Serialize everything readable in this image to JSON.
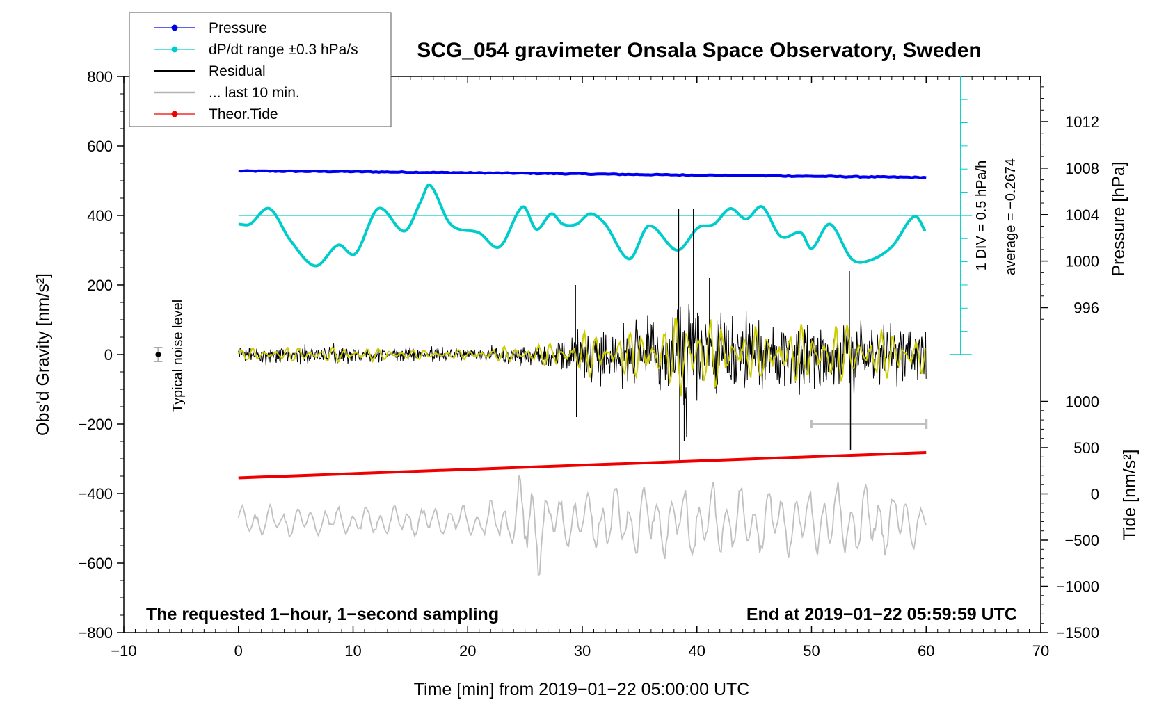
{
  "chart_data": {
    "type": "line",
    "title": "SCG_054 gravimeter Onsala Space Observatory, Sweden",
    "xlabel": "Time [min] from 2019−01−22 05:00:00 UTC",
    "ylabel_left": "Obs'd Gravity [nm/s²]",
    "ylabel_right_pressure": "Pressure [hPa]",
    "ylabel_right_tide": "Tide [nm/s²]",
    "xlim": [
      -10,
      70
    ],
    "ylim": [
      -800,
      800
    ],
    "x_ticks": [
      "−10",
      "0",
      "10",
      "20",
      "30",
      "40",
      "50",
      "60",
      "70"
    ],
    "y_ticks": [
      "800",
      "600",
      "400",
      "200",
      "0",
      "−200",
      "−400",
      "−600",
      "−800"
    ],
    "pressure_ticks": [
      "1012",
      "1008",
      "1004",
      "1000",
      "996"
    ],
    "pressure_tick_values": [
      1012,
      1008,
      1004,
      1000,
      996
    ],
    "pressure_axis": {
      "value_a": 1012,
      "gravity_a": 670,
      "value_b": 996,
      "gravity_b": 135
    },
    "tide_ticks": [
      "1000",
      "500",
      "0",
      "−500",
      "−1000",
      "−1500"
    ],
    "tide_tick_values": [
      1000,
      500,
      0,
      -500,
      -1000,
      -1500
    ],
    "tide_axis": {
      "value_a": 1000,
      "gravity_a": -135,
      "value_b": -1500,
      "gravity_b": -800
    },
    "legend": [
      {
        "label": "Pressure",
        "color": "#0000ee",
        "style": "line-dot"
      },
      {
        "label": "dP/dt range ±0.3 hPa/s",
        "color": "#00cccc",
        "style": "line-dot"
      },
      {
        "label": "Residual",
        "color": "#000000",
        "style": "line"
      },
      {
        "label": "... last 10 min.",
        "color": "#b4b4b4",
        "style": "line"
      },
      {
        "label": "Theor.Tide",
        "color": "#ee0000",
        "style": "line-dot"
      }
    ],
    "annotations": {
      "sampling_note": "The requested 1−hour, 1−second sampling",
      "end_note": "End at 2019−01−22 05:59:59 UTC",
      "noise_label": "Typical noise level",
      "div_label": "1 DIV = 0.5 hPa/h",
      "average_label": "average = −0.2674"
    },
    "noise_marker": {
      "x": -7,
      "y": 0,
      "err": 20
    },
    "series": [
      {
        "name": "Pressure",
        "color": "#0000ee",
        "x": [
          0,
          10,
          20,
          30,
          40,
          50,
          60
        ],
        "y_hpa": [
          1007.75,
          1007.7,
          1007.6,
          1007.5,
          1007.4,
          1007.3,
          1007.2
        ]
      },
      {
        "name": "dP/dt",
        "color": "#00cccc",
        "reference_y": 400,
        "x": [
          0,
          1,
          2.7,
          4.5,
          6.7,
          8.7,
          10.2,
          12.2,
          14.5,
          15.9,
          16.7,
          18.5,
          21,
          22.8,
          24.8,
          26,
          27.3,
          28.3,
          29.5,
          30.7,
          32,
          34.1,
          35.8,
          38.3,
          40.1,
          41.5,
          42.9,
          44.3,
          45.7,
          47.3,
          49.1,
          50,
          51.6,
          53.5,
          55,
          57,
          59,
          60
        ],
        "y": [
          375,
          375,
          420,
          330,
          255,
          315,
          290,
          420,
          355,
          440,
          488,
          375,
          350,
          310,
          425,
          360,
          405,
          375,
          375,
          405,
          375,
          275,
          370,
          300,
          365,
          375,
          420,
          390,
          425,
          340,
          350,
          305,
          375,
          275,
          270,
          310,
          398,
          350
        ]
      },
      {
        "name": "Theor.Tide",
        "color": "#ee0000",
        "x": [
          0,
          60
        ],
        "y": [
          -355,
          -282
        ]
      }
    ],
    "residual_envelope": {
      "x": [
        0,
        5,
        10,
        15,
        20,
        24,
        29,
        30,
        32,
        35,
        38,
        38.5,
        40,
        42,
        45,
        48,
        50,
        53,
        55,
        58,
        60
      ],
      "amplitude": [
        30,
        35,
        38,
        25,
        25,
        40,
        70,
        120,
        110,
        130,
        150,
        280,
        250,
        140,
        140,
        130,
        150,
        160,
        130,
        110,
        100
      ]
    },
    "residual_spikes": [
      {
        "x": 29.4,
        "y": 200
      },
      {
        "x": 29.5,
        "y": -180
      },
      {
        "x": 38.4,
        "y": 420
      },
      {
        "x": 38.5,
        "y": -305
      },
      {
        "x": 38.9,
        "y": -250
      },
      {
        "x": 39.7,
        "y": 420
      },
      {
        "x": 41.1,
        "y": 220
      },
      {
        "x": 53.3,
        "y": 240
      },
      {
        "x": 53.4,
        "y": -275
      }
    ],
    "last10_bar": {
      "x_start": 50,
      "x_end": 60,
      "y": -200
    },
    "last10_trace": {
      "baseline": -480,
      "x": [
        0,
        10,
        20,
        24,
        24.5,
        25,
        25.5,
        26,
        26.5,
        27,
        30,
        35,
        40,
        45,
        50,
        55,
        60
      ],
      "amplitude": [
        45,
        40,
        45,
        70,
        140,
        190,
        130,
        170,
        110,
        80,
        90,
        100,
        110,
        90,
        100,
        110,
        60
      ]
    }
  }
}
